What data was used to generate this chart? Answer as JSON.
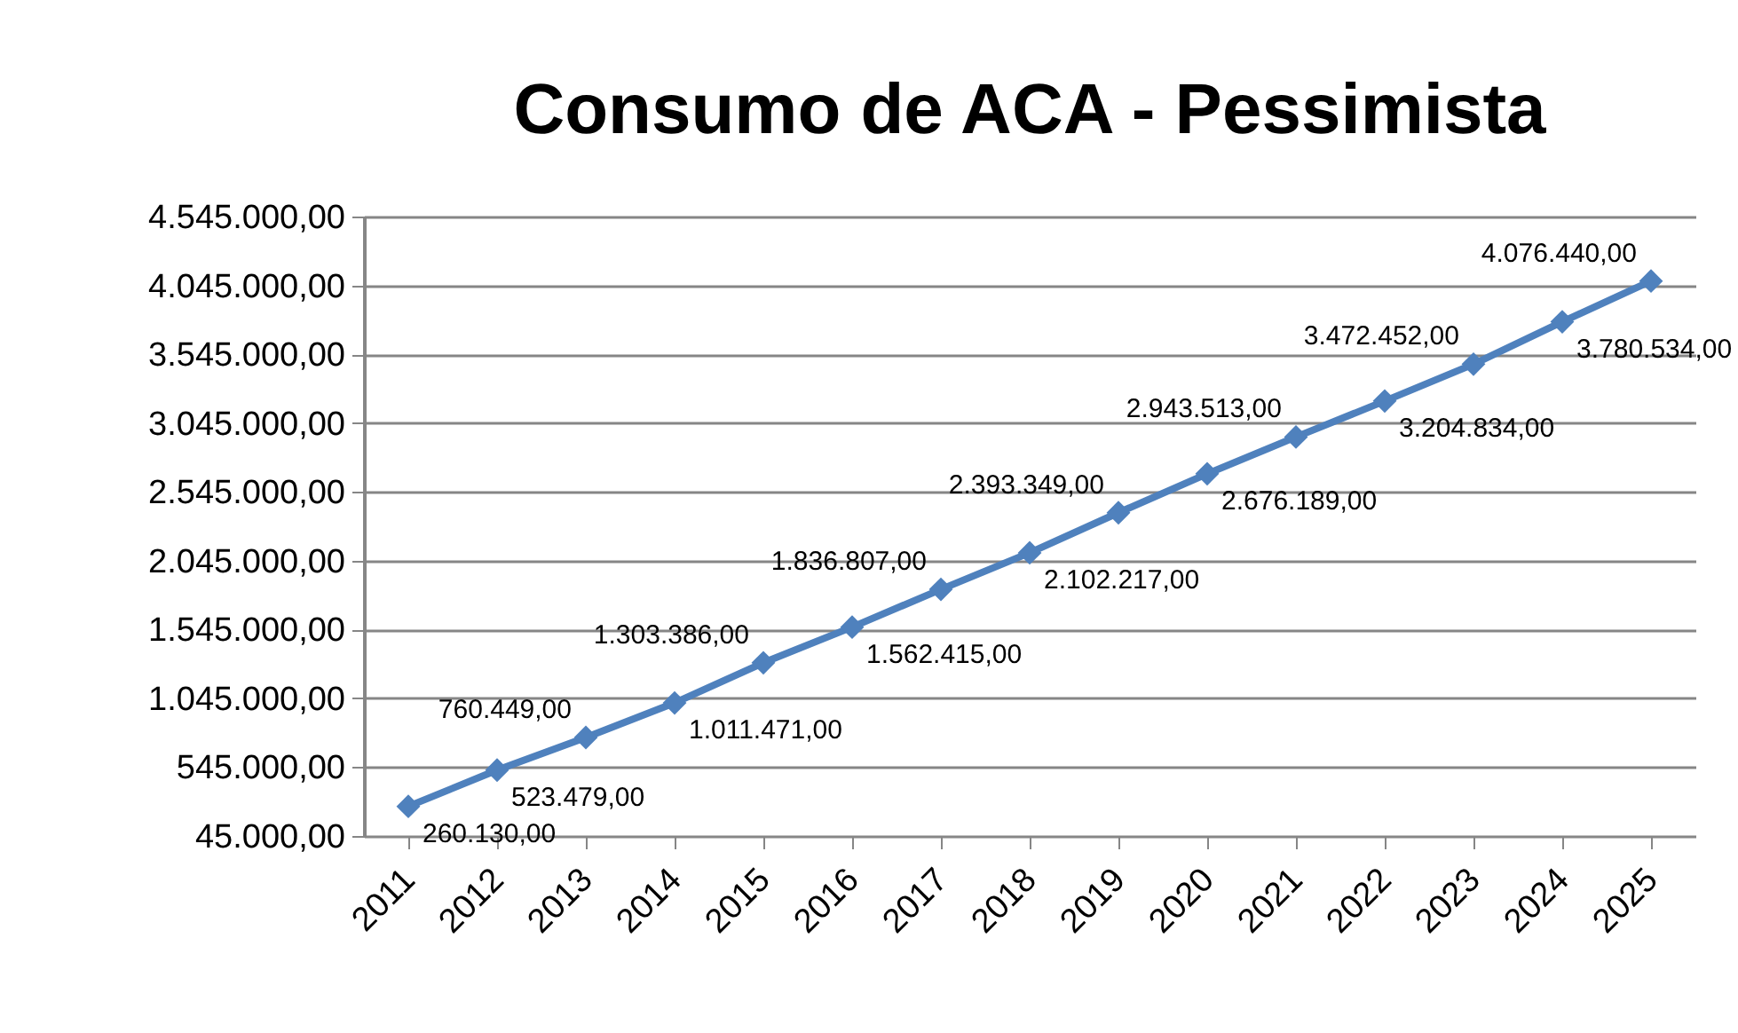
{
  "chart_data": {
    "type": "line",
    "title": "Consumo de ACA - Pessimista",
    "categories": [
      "2011",
      "2012",
      "2013",
      "2014",
      "2015",
      "2016",
      "2017",
      "2018",
      "2019",
      "2020",
      "2021",
      "2022",
      "2023",
      "2024",
      "2025"
    ],
    "series": [
      {
        "color": "#4f81bd",
        "values": [
          260130,
          523479,
          760449,
          1011471,
          1303386,
          1562415,
          1836807,
          2102217,
          2393349,
          2676189,
          2943513,
          3204834,
          3472452,
          3780534,
          4076440
        ],
        "value_labels": [
          "260.130,00",
          "523.479,00",
          "760.449,00",
          "1.011.471,00",
          "1.303.386,00",
          "1.562.415,00",
          "1.836.807,00",
          "2.102.217,00",
          "2.393.349,00",
          "2.676.189,00",
          "2.943.513,00",
          "3.204.834,00",
          "3.472.452,00",
          "3.780.534,00",
          "4.076.440,00"
        ]
      }
    ],
    "ylim": [
      45000,
      4545000
    ],
    "yticks": [
      {
        "value": 45000,
        "label": "45.000,00"
      },
      {
        "value": 545000,
        "label": "545.000,00"
      },
      {
        "value": 1045000,
        "label": "1.045.000,00"
      },
      {
        "value": 1545000,
        "label": "1.545.000,00"
      },
      {
        "value": 2045000,
        "label": "2.045.000,00"
      },
      {
        "value": 2545000,
        "label": "2.545.000,00"
      },
      {
        "value": 3045000,
        "label": "3.045.000,00"
      },
      {
        "value": 3545000,
        "label": "3.545.000,00"
      },
      {
        "value": 4045000,
        "label": "4.045.000,00"
      },
      {
        "value": 4545000,
        "label": "4.545.000,00"
      }
    ],
    "grid": "y",
    "marker": "diamond",
    "line_style": "solid"
  }
}
